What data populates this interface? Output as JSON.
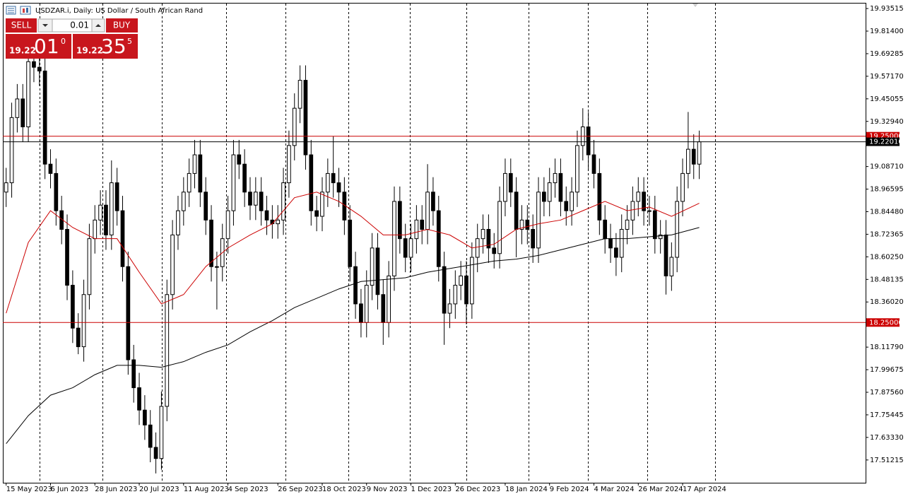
{
  "header": {
    "symbol_text": "USDZAR.i, Daily:  US Dollar / South African Rand"
  },
  "trade_panel": {
    "sell": "SELL",
    "buy": "BUY",
    "volume": "0.01",
    "bid_big": "19.22",
    "bid_pips": "01",
    "bid_frac": "0",
    "ask_big": "19.22",
    "ask_pips": "35",
    "ask_frac": "5"
  },
  "chart_data": {
    "type": "candlestick",
    "open": [
      18.95,
      19.0,
      19.35,
      19.45,
      19.3,
      19.65,
      19.62,
      19.6,
      19.1,
      19.05,
      18.85,
      18.75,
      18.45,
      18.22,
      18.12,
      18.4,
      18.7,
      18.8,
      18.88,
      18.72,
      19.0,
      18.85,
      18.55,
      18.05,
      17.9,
      17.78,
      17.7,
      17.58,
      17.52,
      17.8,
      18.4,
      18.72,
      18.85,
      18.95,
      19.05,
      19.15,
      18.95,
      18.8,
      18.55,
      18.55,
      18.7,
      18.85,
      19.15,
      19.1,
      18.95,
      18.88,
      18.95,
      18.85,
      18.8,
      18.78,
      18.8,
      19.0,
      19.2,
      19.4,
      19.55,
      19.15,
      18.85,
      18.82,
      18.95,
      19.05,
      19.0,
      18.95,
      18.8,
      18.55,
      18.35,
      18.25,
      18.45,
      18.65,
      18.4,
      18.25,
      18.5,
      18.9,
      18.7,
      18.6,
      18.7,
      18.8,
      18.75,
      18.95,
      18.85,
      18.55,
      18.3,
      18.35,
      18.45,
      18.5,
      18.35,
      18.6,
      18.7,
      18.75,
      18.65,
      18.62,
      18.9,
      19.05,
      18.95,
      18.75,
      18.8,
      18.75,
      18.65,
      18.95,
      18.9,
      19.0,
      19.05,
      18.9,
      18.85,
      18.95,
      19.2,
      19.3,
      19.15,
      19.05,
      18.8,
      18.7,
      18.65,
      18.6,
      18.75,
      18.8,
      18.9,
      18.95,
      18.85,
      18.85,
      18.7,
      18.72,
      18.5,
      18.6,
      18.9,
      19.05,
      19.18,
      19.1
    ],
    "high": [
      19.08,
      19.43,
      19.53,
      19.53,
      19.73,
      19.73,
      19.7,
      19.68,
      19.18,
      19.13,
      18.93,
      18.83,
      18.53,
      18.3,
      18.48,
      18.78,
      18.88,
      18.96,
      18.96,
      19.12,
      19.08,
      18.93,
      18.63,
      18.13,
      17.98,
      17.86,
      17.78,
      17.66,
      17.88,
      18.48,
      18.8,
      18.93,
      19.03,
      19.13,
      19.23,
      19.23,
      19.03,
      18.88,
      18.63,
      18.78,
      18.93,
      19.23,
      19.23,
      19.18,
      19.03,
      19.03,
      19.03,
      18.93,
      18.88,
      18.88,
      19.08,
      19.28,
      19.48,
      19.63,
      19.63,
      19.23,
      18.93,
      19.03,
      19.13,
      19.25,
      19.08,
      19.03,
      18.88,
      18.63,
      18.43,
      18.53,
      18.73,
      18.73,
      18.48,
      18.58,
      18.98,
      18.98,
      18.78,
      18.78,
      18.88,
      18.88,
      19.1,
      19.03,
      18.93,
      18.63,
      18.43,
      18.53,
      18.58,
      18.58,
      18.68,
      18.78,
      18.83,
      18.83,
      18.73,
      18.98,
      19.13,
      19.13,
      19.03,
      18.88,
      18.88,
      18.83,
      19.03,
      19.03,
      19.08,
      19.13,
      19.13,
      18.98,
      19.03,
      19.28,
      19.4,
      19.38,
      19.23,
      19.13,
      18.88,
      18.78,
      18.73,
      18.83,
      18.88,
      18.98,
      19.03,
      19.03,
      18.93,
      18.93,
      18.8,
      18.8,
      18.68,
      18.98,
      19.13,
      19.38,
      19.26,
      19.28
    ],
    "low": [
      18.87,
      18.92,
      19.27,
      19.22,
      19.22,
      19.54,
      19.52,
      19.02,
      18.97,
      18.77,
      18.67,
      18.37,
      18.14,
      18.08,
      18.04,
      18.32,
      18.62,
      18.72,
      18.64,
      18.64,
      18.77,
      18.47,
      17.97,
      17.82,
      17.7,
      17.62,
      17.5,
      17.44,
      17.46,
      17.72,
      18.32,
      18.64,
      18.77,
      18.87,
      18.97,
      18.87,
      18.72,
      18.47,
      18.32,
      18.47,
      18.62,
      18.77,
      19.02,
      18.87,
      18.8,
      18.8,
      18.77,
      18.72,
      18.7,
      18.7,
      18.72,
      18.92,
      19.12,
      19.32,
      19.07,
      18.77,
      18.74,
      18.74,
      18.87,
      18.92,
      18.87,
      18.72,
      18.47,
      18.27,
      18.17,
      18.17,
      18.37,
      18.32,
      18.13,
      18.17,
      18.42,
      18.62,
      18.52,
      18.52,
      18.62,
      18.67,
      18.67,
      18.77,
      18.47,
      18.13,
      18.22,
      18.27,
      18.37,
      18.24,
      18.27,
      18.52,
      18.62,
      18.57,
      18.54,
      18.54,
      18.82,
      18.87,
      18.6,
      18.67,
      18.67,
      18.57,
      18.57,
      18.82,
      18.82,
      18.92,
      18.82,
      18.77,
      18.77,
      18.87,
      19.12,
      19.07,
      18.97,
      18.72,
      18.62,
      18.57,
      18.5,
      18.52,
      18.67,
      18.72,
      18.82,
      18.77,
      18.77,
      18.62,
      18.62,
      18.4,
      18.42,
      18.52,
      18.82,
      18.97,
      19.02,
      19.02
    ],
    "close": [
      19.0,
      19.35,
      19.45,
      19.3,
      19.65,
      19.62,
      19.6,
      19.1,
      19.05,
      18.85,
      18.75,
      18.45,
      18.22,
      18.12,
      18.4,
      18.7,
      18.8,
      18.88,
      18.72,
      19.0,
      18.85,
      18.55,
      18.05,
      17.9,
      17.78,
      17.7,
      17.58,
      17.52,
      17.8,
      18.4,
      18.72,
      18.85,
      18.95,
      19.05,
      19.15,
      18.95,
      18.8,
      18.55,
      18.55,
      18.7,
      18.85,
      19.15,
      19.1,
      18.95,
      18.88,
      18.95,
      18.85,
      18.8,
      18.78,
      18.8,
      19.0,
      19.2,
      19.4,
      19.55,
      19.15,
      18.85,
      18.82,
      18.95,
      19.05,
      19.0,
      18.95,
      18.8,
      18.55,
      18.35,
      18.25,
      18.45,
      18.65,
      18.4,
      18.25,
      18.5,
      18.9,
      18.7,
      18.6,
      18.7,
      18.8,
      18.75,
      18.95,
      18.85,
      18.55,
      18.3,
      18.35,
      18.45,
      18.5,
      18.35,
      18.6,
      18.7,
      18.75,
      18.65,
      18.62,
      18.9,
      19.05,
      18.95,
      18.75,
      18.8,
      18.75,
      18.65,
      18.95,
      18.9,
      19.0,
      19.05,
      18.9,
      18.85,
      18.95,
      19.2,
      19.3,
      19.15,
      19.05,
      18.8,
      18.7,
      18.65,
      18.6,
      18.75,
      18.8,
      18.9,
      18.95,
      18.85,
      18.85,
      18.7,
      18.72,
      18.5,
      18.6,
      18.9,
      19.05,
      19.18,
      19.1,
      19.22
    ],
    "up_color": "#ffffff",
    "down_color": "#000000",
    "wick_color": "#000000",
    "xlim": [
      -0.6,
      155.0
    ],
    "xticks": [
      {
        "value": 0,
        "label": "15 May 2023"
      },
      {
        "value": 8,
        "label": "6 Jun 2023"
      },
      {
        "value": 16,
        "label": "28 Jun 2023"
      },
      {
        "value": 24,
        "label": "20 Jul 2023"
      },
      {
        "value": 32,
        "label": "11 Aug 2023"
      },
      {
        "value": 40,
        "label": "4 Sep 2023"
      },
      {
        "value": 49,
        "label": "26 Sep 2023"
      },
      {
        "value": 57,
        "label": "18 Oct 2023"
      },
      {
        "value": 65,
        "label": "9 Nov 2023"
      },
      {
        "value": 73,
        "label": "1 Dec 2023"
      },
      {
        "value": 81,
        "label": "26 Dec 2023"
      },
      {
        "value": 90,
        "label": "18 Jan 2024"
      },
      {
        "value": 98,
        "label": "9 Feb 2024"
      },
      {
        "value": 106,
        "label": "4 Mar 2024"
      },
      {
        "value": 114,
        "label": "26 Mar 2024"
      },
      {
        "value": 122,
        "label": "17 Apr 2024"
      }
    ],
    "ylim": [
      17.39,
      19.962
    ],
    "yticks": [
      {
        "value": 19.93515,
        "label": "19.93515"
      },
      {
        "value": 19.814,
        "label": "19.81400"
      },
      {
        "value": 19.69285,
        "label": "19.69285"
      },
      {
        "value": 19.5717,
        "label": "19.57170"
      },
      {
        "value": 19.45055,
        "label": "19.45055"
      },
      {
        "value": 19.3294,
        "label": "19.32940"
      },
      {
        "value": 19.0871,
        "label": "19.08710"
      },
      {
        "value": 18.96595,
        "label": "18.96595"
      },
      {
        "value": 18.8448,
        "label": "18.84480"
      },
      {
        "value": 18.72365,
        "label": "18.72365"
      },
      {
        "value": 18.6025,
        "label": "18.60250"
      },
      {
        "value": 18.48135,
        "label": "18.48135"
      },
      {
        "value": 18.3602,
        "label": "18.36020"
      },
      {
        "value": 18.1179,
        "label": "18.11790"
      },
      {
        "value": 17.99675,
        "label": "17.99675"
      },
      {
        "value": 17.8756,
        "label": "17.87560"
      },
      {
        "value": 17.75445,
        "label": "17.75445"
      },
      {
        "value": 17.6333,
        "label": "17.63330"
      },
      {
        "value": 17.51215,
        "label": "17.51215"
      }
    ],
    "series": [
      {
        "color": "#cc0000",
        "x": [
          0,
          4,
          8,
          12,
          16,
          20,
          24,
          28,
          32,
          36,
          40,
          44,
          48,
          52,
          56,
          60,
          64,
          68,
          72,
          76,
          80,
          84,
          88,
          92,
          96,
          100,
          104,
          108,
          112,
          116,
          120,
          125
        ],
        "values": [
          18.3,
          18.68,
          18.85,
          18.76,
          18.7,
          18.7,
          18.52,
          18.35,
          18.4,
          18.55,
          18.65,
          18.72,
          18.78,
          18.92,
          18.95,
          18.9,
          18.82,
          18.72,
          18.72,
          18.75,
          18.72,
          18.65,
          18.67,
          18.75,
          18.78,
          18.8,
          18.85,
          18.9,
          18.85,
          18.87,
          18.82,
          18.89
        ]
      },
      {
        "color": "#000000",
        "x": [
          0,
          4,
          8,
          12,
          16,
          20,
          24,
          28,
          32,
          36,
          40,
          44,
          48,
          52,
          56,
          60,
          64,
          68,
          72,
          76,
          80,
          84,
          88,
          92,
          96,
          100,
          104,
          108,
          112,
          116,
          120,
          125
        ],
        "values": [
          17.6,
          17.75,
          17.86,
          17.9,
          17.97,
          18.02,
          18.02,
          18.01,
          18.04,
          18.09,
          18.13,
          18.2,
          18.26,
          18.33,
          18.38,
          18.43,
          18.47,
          18.48,
          18.49,
          18.52,
          18.54,
          18.56,
          18.58,
          18.59,
          18.61,
          18.64,
          18.67,
          18.7,
          18.7,
          18.71,
          18.72,
          18.76
        ]
      }
    ],
    "levels": [
      {
        "value": 19.25,
        "label": "19.25000",
        "color": "#cc0000"
      },
      {
        "value": 19.2201,
        "label": "19.22010",
        "color": "#000000"
      },
      {
        "value": 18.25,
        "label": "18.25000",
        "color": "#cc0000"
      }
    ]
  }
}
